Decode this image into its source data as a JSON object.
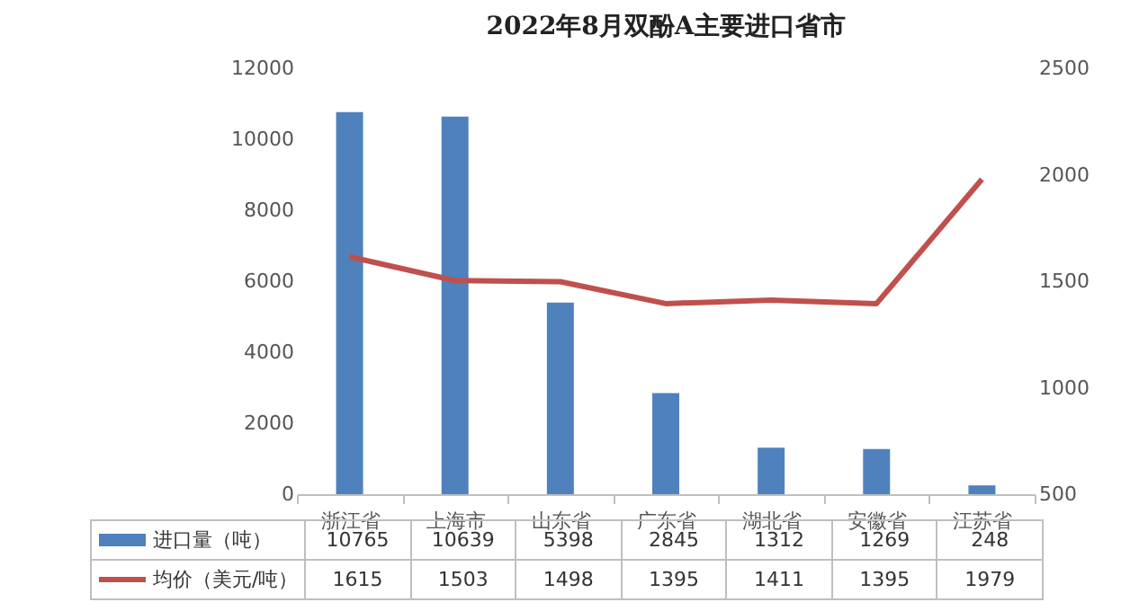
{
  "chart_data": {
    "type": "bar",
    "title": "2022年8月双酚A主要进口省市",
    "categories": [
      "浙江省",
      "上海市",
      "山东省",
      "广东省",
      "湖北省",
      "安徽省",
      "江苏省"
    ],
    "series": [
      {
        "name": "进口量（吨）",
        "color": "#4f81bd",
        "values": [
          10765,
          10639,
          5398,
          2845,
          1312,
          1269,
          248
        ]
      },
      {
        "name": "均价（美元/吨）",
        "type": "line",
        "axis": "y2",
        "color": "#c0504d",
        "values": [
          1615,
          1503,
          1498,
          1395,
          1411,
          1395,
          1979
        ]
      }
    ],
    "ylim": [
      0,
      12000
    ],
    "yticks": [
      0,
      2000,
      4000,
      6000,
      8000,
      10000,
      12000
    ],
    "y2lim": [
      500,
      2500
    ],
    "y2ticks": [
      500,
      1000,
      1500,
      2000,
      2500
    ],
    "grid": false,
    "legend": "bottom",
    "data_labels": true,
    "marker": "none",
    "line_style": "solid"
  }
}
